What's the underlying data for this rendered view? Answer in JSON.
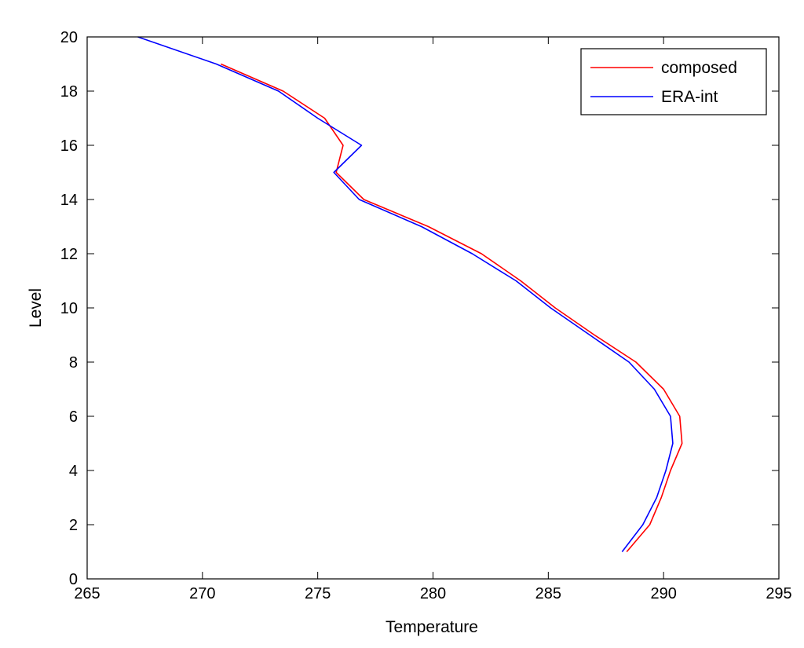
{
  "chart_data": {
    "type": "line",
    "title": "",
    "xlabel": "Temperature",
    "ylabel": "Level",
    "xlim": [
      265,
      295
    ],
    "ylim": [
      0,
      20
    ],
    "xticks": [
      265,
      270,
      275,
      280,
      285,
      290,
      295
    ],
    "yticks": [
      0,
      2,
      4,
      6,
      8,
      10,
      12,
      14,
      16,
      18,
      20
    ],
    "xtick_labels": [
      "265",
      "270",
      "275",
      "280",
      "285",
      "290",
      "295"
    ],
    "ytick_labels": [
      "0",
      "2",
      "4",
      "6",
      "8",
      "10",
      "12",
      "14",
      "16",
      "18",
      "20"
    ],
    "grid": false,
    "legend_position": "top-right",
    "series": [
      {
        "name": "composed",
        "color": "#ff0000",
        "points": [
          [
            288.4,
            1
          ],
          [
            289.4,
            2
          ],
          [
            289.9,
            3
          ],
          [
            290.3,
            4
          ],
          [
            290.8,
            5
          ],
          [
            290.7,
            6
          ],
          [
            290.0,
            7
          ],
          [
            288.8,
            8
          ],
          [
            287.0,
            9
          ],
          [
            285.3,
            10
          ],
          [
            283.8,
            11
          ],
          [
            282.1,
            12
          ],
          [
            279.8,
            13
          ],
          [
            277.0,
            14
          ],
          [
            275.8,
            15
          ],
          [
            276.1,
            16
          ],
          [
            275.3,
            17
          ],
          [
            273.5,
            18
          ],
          [
            270.8,
            19
          ]
        ]
      },
      {
        "name": "ERA-int",
        "color": "#0000ff",
        "points": [
          [
            288.2,
            1
          ],
          [
            289.1,
            2
          ],
          [
            289.7,
            3
          ],
          [
            290.1,
            4
          ],
          [
            290.4,
            5
          ],
          [
            290.3,
            6
          ],
          [
            289.6,
            7
          ],
          [
            288.5,
            8
          ],
          [
            286.8,
            9
          ],
          [
            285.1,
            10
          ],
          [
            283.6,
            11
          ],
          [
            281.7,
            12
          ],
          [
            279.5,
            13
          ],
          [
            276.8,
            14
          ],
          [
            275.7,
            15
          ],
          [
            276.9,
            16
          ],
          [
            275.0,
            17
          ],
          [
            273.3,
            18
          ],
          [
            270.6,
            19
          ],
          [
            267.2,
            20
          ]
        ]
      }
    ]
  }
}
